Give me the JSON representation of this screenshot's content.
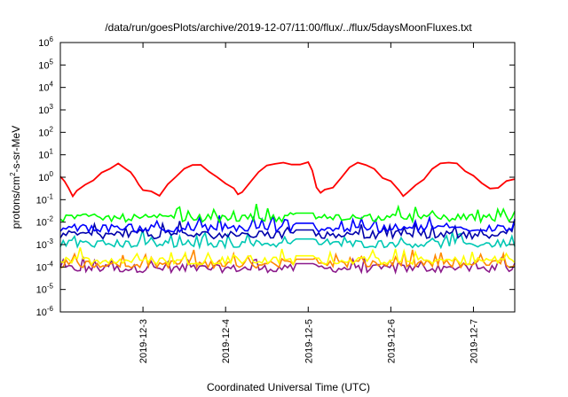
{
  "chart_data": {
    "type": "line",
    "title": "/data/run/goesPlots/archive/2019-12-07/11:00/flux/../flux/5daysMoonFluxes.txt",
    "xlabel": "Coordinated Universal Time (UTC)",
    "ylabel": "protons/cm²-s-sr-MeV",
    "yscale": "log",
    "ylim_exponents": [
      -6,
      6
    ],
    "ytick_exponents": [
      -6,
      -5,
      -4,
      -3,
      -2,
      -1,
      0,
      1,
      2,
      3,
      4,
      5,
      6
    ],
    "xlim_days": [
      2.0,
      7.5
    ],
    "xtick_labels": [
      "2019-12-3",
      "2019-12-4",
      "2019-12-5",
      "2019-12-6",
      "2019-12-7"
    ],
    "xtick_positions_days": [
      3,
      4,
      5,
      6,
      7
    ],
    "grid": false,
    "series": [
      {
        "color": "#ff0000",
        "baseline_log": 0.0,
        "description": "daily oscillation ~1e-1 to 5e0",
        "x": [
          2.0,
          2.05,
          2.1,
          2.15,
          2.2,
          2.3,
          2.4,
          2.5,
          2.6,
          2.7,
          2.8,
          2.85,
          2.9,
          2.95,
          3.0,
          3.1,
          3.2,
          3.3,
          3.4,
          3.5,
          3.6,
          3.7,
          3.8,
          3.9,
          4.0,
          4.1,
          4.15,
          4.2,
          4.3,
          4.4,
          4.5,
          4.6,
          4.7,
          4.8,
          4.9,
          5.0,
          5.05,
          5.1,
          5.15,
          5.2,
          5.3,
          5.4,
          5.5,
          5.6,
          5.7,
          5.8,
          5.9,
          6.0,
          6.1,
          6.15,
          6.2,
          6.3,
          6.4,
          6.5,
          6.6,
          6.7,
          6.8,
          6.9,
          7.0,
          7.1,
          7.2,
          7.3,
          7.4,
          7.5
        ],
        "y": [
          1.0,
          0.6,
          0.3,
          0.15,
          0.25,
          0.4,
          0.8,
          1.5,
          2.5,
          3.5,
          2.5,
          1.5,
          1.0,
          0.5,
          0.3,
          0.2,
          0.15,
          0.5,
          1.2,
          2.5,
          3.5,
          3.0,
          2.0,
          1.0,
          0.5,
          0.3,
          0.2,
          0.2,
          0.6,
          1.5,
          3.0,
          4.0,
          4.5,
          4.0,
          4.0,
          4.0,
          2.0,
          0.4,
          0.2,
          0.25,
          0.3,
          1.0,
          3.0,
          4.5,
          3.5,
          2.0,
          1.0,
          0.6,
          0.3,
          0.15,
          0.2,
          0.4,
          0.8,
          2.0,
          3.5,
          4.5,
          3.5,
          2.0,
          1.0,
          0.6,
          0.3,
          0.4,
          0.6,
          0.9
        ]
      },
      {
        "color": "#00ff00",
        "baseline_log": -1.85,
        "description": "noisy ~1e-2"
      },
      {
        "color": "#0000ff",
        "baseline_log": -2.3,
        "description": "noisy ~5e-3"
      },
      {
        "color": "#0000aa",
        "baseline_log": -2.6,
        "description": "noisy ~3e-3"
      },
      {
        "color": "#00c8b4",
        "baseline_log": -3.0,
        "description": "noisy ~1e-3"
      },
      {
        "color": "#ffff00",
        "baseline_log": -3.75,
        "description": "noisy ~2e-4"
      },
      {
        "color": "#ff8800",
        "baseline_log": -3.9,
        "description": "noisy ~1.2e-4"
      },
      {
        "color": "#8b1a8b",
        "baseline_log": -4.1,
        "description": "noisy ~8e-5"
      }
    ]
  }
}
